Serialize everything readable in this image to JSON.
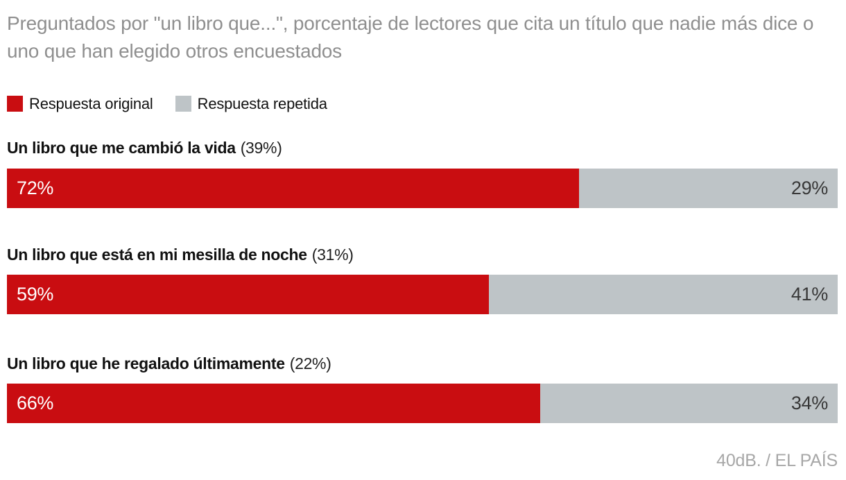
{
  "header": {
    "title": "Preguntados por \"un libro que...\", porcentaje de lectores que cita un título que nadie más dice o uno que han elegido otros encuestados"
  },
  "legend": {
    "items": [
      {
        "label": "Respuesta original",
        "color": "#c90d11"
      },
      {
        "label": "Respuesta repetida",
        "color": "#bec4c7"
      }
    ]
  },
  "chart_data": {
    "type": "bar",
    "orientation": "horizontal",
    "stacked": true,
    "series": [
      "Respuesta original",
      "Respuesta repetida"
    ],
    "series_colors": [
      "#c90d11",
      "#bec4c7"
    ],
    "xlim": [
      0,
      100
    ],
    "grid": false,
    "legend_position": "top",
    "groups": [
      {
        "label": "Un libro que me cambió la vida",
        "share": "(39%)",
        "values": [
          72,
          29
        ],
        "value_labels": [
          "72%",
          "29%"
        ]
      },
      {
        "label": "Un libro que está en mi mesilla de noche",
        "share": "(31%)",
        "values": [
          59,
          41
        ],
        "value_labels": [
          "59%",
          "41%"
        ]
      },
      {
        "label": "Un libro que he regalado últimamente",
        "share": "(22%)",
        "values": [
          66,
          34
        ],
        "value_labels": [
          "66%",
          "34%"
        ]
      }
    ]
  },
  "footer": {
    "credit": "40dB. / EL PAÍS"
  }
}
